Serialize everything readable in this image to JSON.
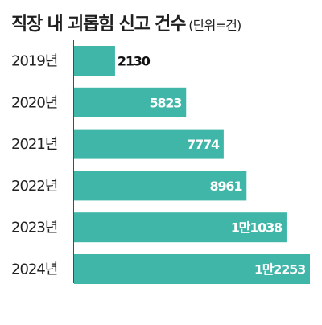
{
  "chart_data": {
    "type": "bar",
    "orientation": "horizontal",
    "title": "직장 내 괴롭힘 신고 건수",
    "unit_note": "(단위=건)",
    "categories": [
      "2019년",
      "2020년",
      "2021년",
      "2022년",
      "2023년",
      "2024년"
    ],
    "values": [
      2130,
      5823,
      7774,
      8961,
      11038,
      12253
    ],
    "value_labels": [
      "2130",
      "5823",
      "7774",
      "8961",
      "1만1038",
      "1만2253"
    ],
    "xlim": [
      0,
      12253
    ],
    "grid": false,
    "legend": "none",
    "colors": {
      "bar": "#3fb6a8",
      "label_inside": "#ffffff",
      "label_outside": "#111111"
    }
  }
}
